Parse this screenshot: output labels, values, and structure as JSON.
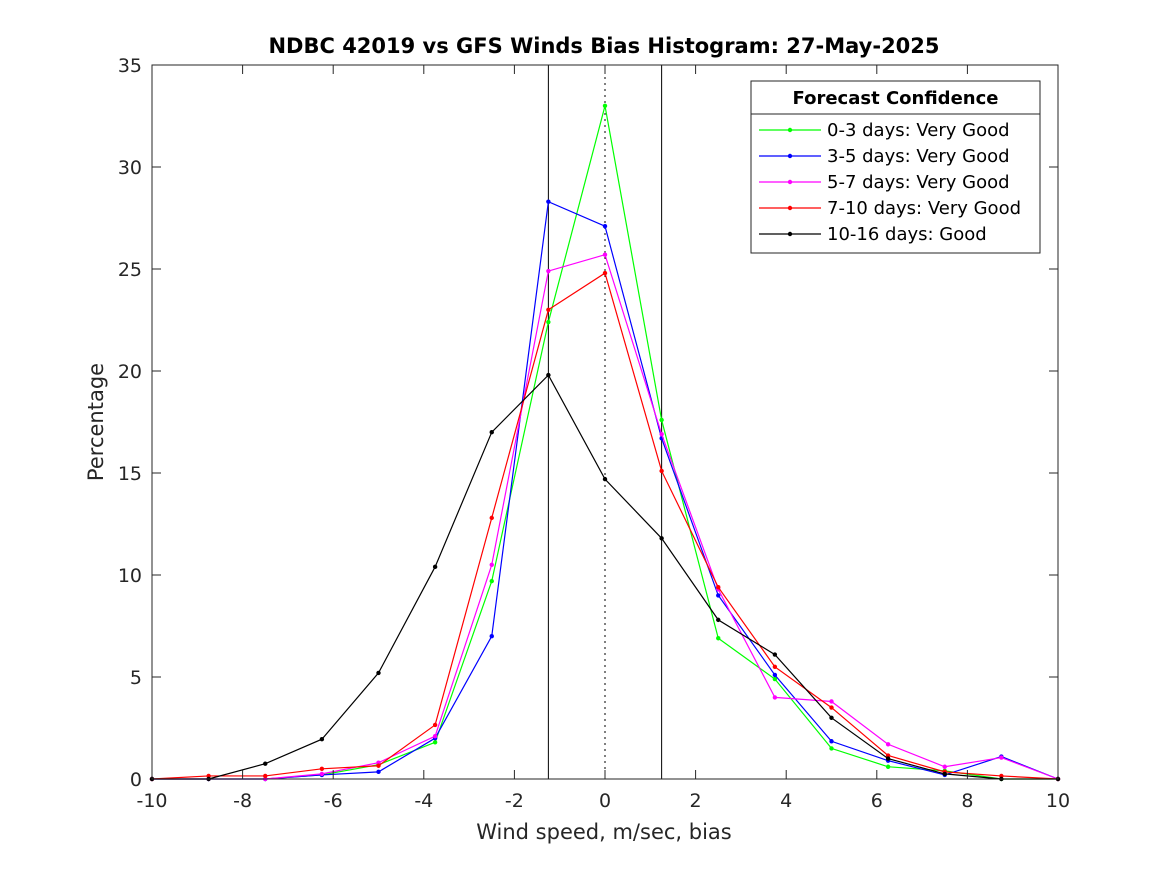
{
  "chart_data": {
    "type": "line",
    "title": "NDBC 42019 vs GFS Winds Bias Histogram: 27-May-2025",
    "xlabel": "Wind speed, m/sec, bias",
    "ylabel": "Percentage",
    "xlim": [
      -10,
      10
    ],
    "ylim": [
      0,
      35
    ],
    "xticks": [
      -10,
      -8,
      -6,
      -4,
      -2,
      0,
      2,
      4,
      6,
      8,
      10
    ],
    "yticks": [
      0,
      5,
      10,
      15,
      20,
      25,
      30,
      35
    ],
    "grid": false,
    "vlines": [
      -1.25,
      0,
      1.25
    ],
    "vline_styles": [
      "solid",
      "dotted",
      "solid"
    ],
    "x": [
      -10,
      -8.75,
      -7.5,
      -6.25,
      -5,
      -3.75,
      -2.5,
      -1.25,
      0,
      1.25,
      2.5,
      3.75,
      5,
      6.25,
      7.5,
      8.75,
      10
    ],
    "legend": {
      "title": "Forecast Confidence",
      "placement": "top-right"
    },
    "series": [
      {
        "name": "0-3 days: Very Good",
        "color": "#00ff00",
        "values": [
          0,
          0,
          0,
          0.2,
          0.7,
          1.8,
          9.7,
          22.4,
          33.0,
          17.6,
          6.9,
          4.9,
          1.5,
          0.6,
          0.4,
          0,
          0
        ]
      },
      {
        "name": "3-5 days: Very Good",
        "color": "#0000ff",
        "values": [
          0,
          0,
          0,
          0.2,
          0.35,
          2.0,
          7.0,
          28.3,
          27.1,
          16.7,
          9.0,
          5.1,
          1.85,
          0.9,
          0.2,
          1.1,
          0
        ]
      },
      {
        "name": "5-7 days: Very Good",
        "color": "#ff00ff",
        "values": [
          0,
          0,
          0,
          0.25,
          0.8,
          2.1,
          10.5,
          24.9,
          25.7,
          16.9,
          9.3,
          4.0,
          3.8,
          1.7,
          0.6,
          1.05,
          0
        ]
      },
      {
        "name": "7-10 days: Very Good",
        "color": "#ff0000",
        "values": [
          0,
          0.15,
          0.15,
          0.5,
          0.65,
          2.65,
          12.8,
          23.0,
          24.8,
          15.1,
          9.4,
          5.5,
          3.5,
          1.15,
          0.35,
          0.15,
          0
        ]
      },
      {
        "name": "10-16 days: Good",
        "color": "#000000",
        "values": [
          0,
          0,
          0.75,
          1.95,
          5.2,
          10.4,
          17.0,
          19.8,
          14.7,
          11.8,
          7.8,
          6.1,
          3.0,
          1.0,
          0.25,
          0,
          0
        ]
      }
    ]
  }
}
